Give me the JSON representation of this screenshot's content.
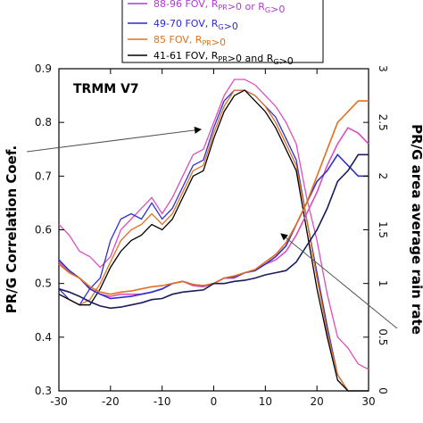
{
  "chart_data": {
    "type": "line",
    "title": "",
    "annotation": "TRMM V7",
    "xlabel": "",
    "ylabel_left": "PR/G Correlation Coef.",
    "ylabel_right": "PR/G area average rain rate",
    "xlim": [
      -30,
      30
    ],
    "ylim_left": [
      0.3,
      0.9
    ],
    "ylim_right": [
      0,
      3
    ],
    "x_ticks": [
      -30,
      -20,
      -10,
      0,
      10,
      20,
      30
    ],
    "y_ticks_left": [
      0.3,
      0.4,
      0.5,
      0.6,
      0.7,
      0.8,
      0.9
    ],
    "y_ticks_right": [
      0,
      0.5,
      1,
      1.5,
      2,
      2.5,
      3
    ],
    "grid": false,
    "legend_position": "top-center",
    "legend": [
      {
        "label": "88-96 FOV, R",
        "sub1": "PR",
        "mid": ">0 or R",
        "sub2": "G",
        "tail": ">0",
        "color": "#b03ad0"
      },
      {
        "label": "49-70 FOV, R",
        "sub1": "G",
        "mid": ">0",
        "sub2": "",
        "tail": "",
        "color": "#2a2ad0"
      },
      {
        "label": "85 FOV, R",
        "sub1": "PR",
        "mid": ">0",
        "sub2": "",
        "tail": "",
        "color": "#e07020"
      },
      {
        "label": "41-61 FOV, R",
        "sub1": "PR",
        "mid": ">0 and R",
        "sub2": "G",
        "tail": ">0",
        "color": "#000000"
      }
    ],
    "x": [
      -30,
      -28,
      -26,
      -24,
      -22,
      -20,
      -18,
      -16,
      -14,
      -12,
      -10,
      -8,
      -6,
      -4,
      -2,
      0,
      2,
      4,
      6,
      8,
      10,
      12,
      14,
      16,
      18,
      20,
      22,
      24,
      26,
      28,
      30
    ],
    "series": [
      {
        "name": "88-96 FOV",
        "axis": "left",
        "color": "#d94fc0",
        "values": [
          0.61,
          0.59,
          0.56,
          0.55,
          0.53,
          0.55,
          0.6,
          0.62,
          0.64,
          0.66,
          0.63,
          0.66,
          0.7,
          0.74,
          0.75,
          0.8,
          0.85,
          0.88,
          0.88,
          0.87,
          0.85,
          0.83,
          0.8,
          0.76,
          0.66,
          0.58,
          0.48,
          0.4,
          0.38,
          0.35,
          0.34
        ]
      },
      {
        "name": "49-70 FOV",
        "axis": "left",
        "color": "#3030c8",
        "values": [
          0.49,
          0.47,
          0.46,
          0.49,
          0.51,
          0.58,
          0.62,
          0.63,
          0.62,
          0.65,
          0.62,
          0.64,
          0.68,
          0.72,
          0.73,
          0.79,
          0.84,
          0.86,
          0.86,
          0.85,
          0.83,
          0.81,
          0.77,
          0.73,
          0.62,
          0.52,
          0.42,
          0.33,
          0.29,
          0.28,
          0.28
        ]
      },
      {
        "name": "85 FOV",
        "axis": "left",
        "color": "#e07020",
        "values": [
          0.48,
          0.47,
          0.46,
          0.47,
          0.5,
          0.54,
          0.58,
          0.6,
          0.61,
          0.63,
          0.61,
          0.63,
          0.67,
          0.71,
          0.72,
          0.78,
          0.83,
          0.86,
          0.86,
          0.85,
          0.83,
          0.8,
          0.76,
          0.72,
          0.62,
          0.51,
          0.41,
          0.33,
          0.29,
          0.28,
          0.28
        ]
      },
      {
        "name": "41-61 FOV",
        "axis": "left",
        "color": "#000000",
        "values": [
          0.48,
          0.47,
          0.46,
          0.46,
          0.49,
          0.53,
          0.56,
          0.58,
          0.59,
          0.61,
          0.6,
          0.62,
          0.66,
          0.7,
          0.71,
          0.77,
          0.82,
          0.85,
          0.86,
          0.84,
          0.82,
          0.79,
          0.75,
          0.71,
          0.6,
          0.49,
          0.4,
          0.32,
          0.29,
          0.28,
          0.28
        ]
      },
      {
        "name": "88-96 FOV rain rate",
        "axis": "right",
        "color": "#d94fc0",
        "values": [
          1.2,
          1.1,
          1.05,
          0.95,
          0.9,
          0.88,
          0.9,
          0.9,
          0.9,
          0.92,
          0.95,
          1.0,
          1.02,
          0.98,
          0.97,
          1.0,
          1.05,
          1.05,
          1.1,
          1.12,
          1.18,
          1.22,
          1.3,
          1.45,
          1.65,
          1.85,
          2.1,
          2.3,
          2.45,
          2.4,
          2.3
        ]
      },
      {
        "name": "49-70 FOV rain rate",
        "axis": "right",
        "color": "#3030c8",
        "values": [
          1.22,
          1.12,
          1.05,
          0.95,
          0.9,
          0.86,
          0.87,
          0.88,
          0.9,
          0.92,
          0.95,
          1.0,
          1.02,
          0.99,
          0.98,
          1.0,
          1.05,
          1.06,
          1.1,
          1.12,
          1.18,
          1.25,
          1.35,
          1.55,
          1.75,
          1.95,
          2.05,
          2.2,
          2.1,
          2.0,
          2.0
        ]
      },
      {
        "name": "85 FOV rain rate",
        "axis": "right",
        "color": "#e07020",
        "values": [
          1.18,
          1.1,
          1.05,
          0.97,
          0.92,
          0.9,
          0.92,
          0.93,
          0.95,
          0.97,
          0.98,
          1.0,
          1.02,
          0.99,
          0.98,
          1.0,
          1.05,
          1.07,
          1.1,
          1.13,
          1.2,
          1.27,
          1.38,
          1.55,
          1.75,
          2.0,
          2.25,
          2.5,
          2.6,
          2.7,
          2.7
        ]
      },
      {
        "name": "41-61 FOV rain rate",
        "axis": "right",
        "color": "#1a1a60",
        "values": [
          0.95,
          0.92,
          0.88,
          0.83,
          0.79,
          0.77,
          0.78,
          0.8,
          0.82,
          0.85,
          0.86,
          0.9,
          0.92,
          0.93,
          0.94,
          1.0,
          1.0,
          1.02,
          1.03,
          1.05,
          1.08,
          1.1,
          1.12,
          1.2,
          1.35,
          1.5,
          1.7,
          1.95,
          2.05,
          2.2,
          2.2
        ]
      }
    ]
  }
}
